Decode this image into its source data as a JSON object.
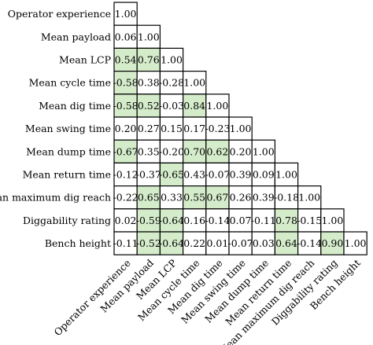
{
  "chart_data": {
    "type": "heatmap",
    "subtype": "lower-triangular correlation matrix",
    "variables": [
      "Operator experience",
      "Mean payload",
      "Mean LCP",
      "Mean cycle time",
      "Mean dig time",
      "Mean swing time",
      "Mean dump time",
      "Mean return time",
      "Mean maximum dig reach",
      "Diggability rating",
      "Bench height"
    ],
    "matrix": [
      [
        "1.00"
      ],
      [
        "0.06",
        "1.00"
      ],
      [
        "0.54",
        "0.76",
        "1.00"
      ],
      [
        "-0.58",
        "0.38",
        "-0.28",
        "1.00"
      ],
      [
        "-0.58",
        "0.52",
        "-0.03",
        "0.84",
        "1.00"
      ],
      [
        "0.20",
        "0.27",
        "0.15",
        "0.17",
        "-0.23",
        "1.00"
      ],
      [
        "-0.67",
        "0.35",
        "-0.20",
        "0.70",
        "0.62",
        "0.20",
        "1.00"
      ],
      [
        "-0.12",
        "-0.37",
        "-0.65",
        "0.43",
        "-0.07",
        "0.39",
        "0.09",
        "1.00"
      ],
      [
        "-0.22",
        "0.65",
        "0.33",
        "0.55",
        "0.67",
        "0.26",
        "0.39",
        "-0.18",
        "1.00"
      ],
      [
        "0.02",
        "-0.59",
        "-0.64",
        "0.16",
        "-0.14",
        "0.07",
        "-0.11",
        "0.78",
        "-0.15",
        "1.00"
      ],
      [
        "-0.11",
        "-0.52",
        "-0.64",
        "0.22",
        "0.01",
        "-0.07",
        "0.03",
        "0.64",
        "-0.14",
        "0.90",
        "1.00"
      ]
    ],
    "highlighted": [
      [
        2,
        0
      ],
      [
        2,
        1
      ],
      [
        3,
        0
      ],
      [
        4,
        0
      ],
      [
        4,
        1
      ],
      [
        4,
        3
      ],
      [
        6,
        0
      ],
      [
        6,
        3
      ],
      [
        6,
        4
      ],
      [
        7,
        2
      ],
      [
        8,
        1
      ],
      [
        8,
        3
      ],
      [
        8,
        4
      ],
      [
        9,
        1
      ],
      [
        9,
        2
      ],
      [
        9,
        7
      ],
      [
        10,
        1
      ],
      [
        10,
        2
      ],
      [
        10,
        7
      ],
      [
        10,
        9
      ]
    ],
    "colors": {
      "highlight": "#d5eccb",
      "cell": "#ffffff",
      "border": "#000000"
    }
  }
}
